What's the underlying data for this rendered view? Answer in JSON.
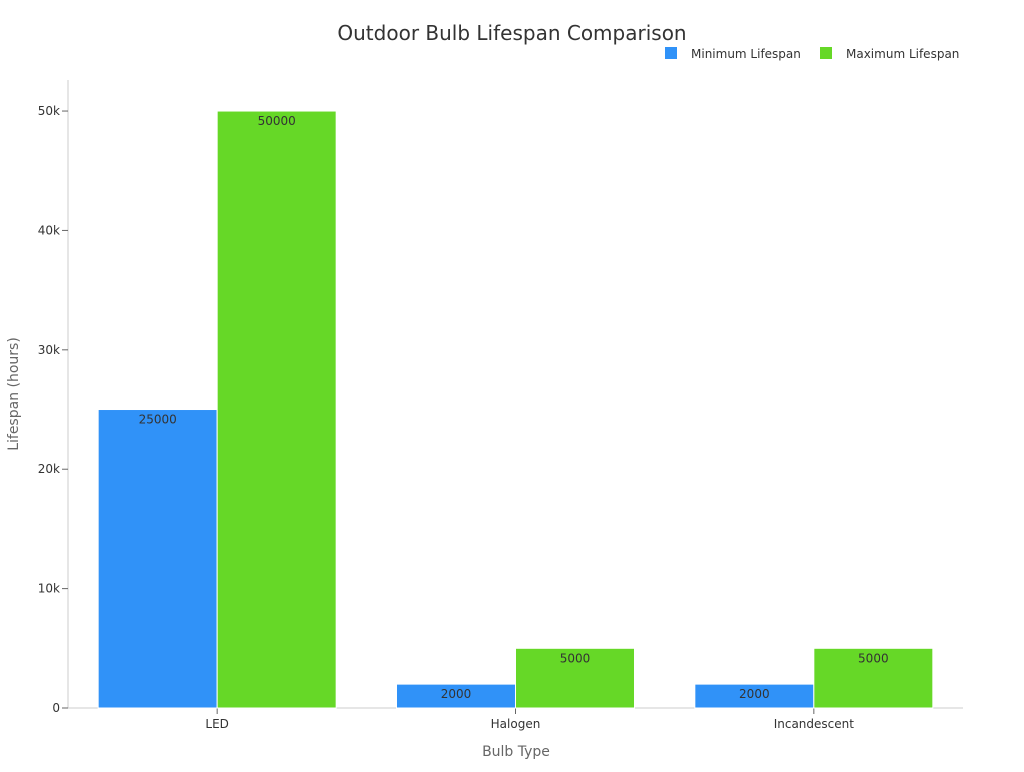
{
  "chart_data": {
    "type": "bar",
    "title": "Outdoor Bulb Lifespan Comparison",
    "xlabel": "Bulb Type",
    "ylabel": "Lifespan (hours)",
    "categories": [
      "LED",
      "Halogen",
      "Incandescent"
    ],
    "series": [
      {
        "name": "Minimum Lifespan",
        "values": [
          25000,
          2000,
          2000
        ],
        "color": "#3092f8"
      },
      {
        "name": "Maximum Lifespan",
        "values": [
          50000,
          5000,
          5000
        ],
        "color": "#66d827"
      }
    ],
    "ylim": [
      0,
      52600
    ],
    "yticks": [
      0,
      10000,
      20000,
      30000,
      40000,
      50000
    ],
    "ytick_labels": [
      "0",
      "10k",
      "20k",
      "30k",
      "40k",
      "50k"
    ],
    "grid": false,
    "legend_position": "top-right"
  }
}
